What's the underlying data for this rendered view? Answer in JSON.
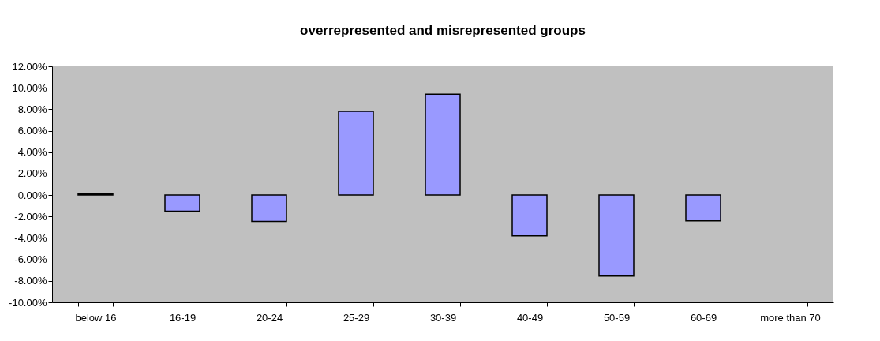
{
  "chart_data": {
    "type": "bar",
    "title": "overrepresented and misrepresented groups",
    "categories": [
      "below  16",
      "16-19",
      "20-24",
      "25-29",
      "30-39",
      "40-49",
      "50-59",
      "60-69",
      "more than 70"
    ],
    "values": [
      0.1,
      -1.5,
      -2.45,
      7.8,
      9.4,
      -3.8,
      -7.55,
      -2.4,
      null
    ],
    "color": "#9999ff",
    "ylim": [
      -10,
      12
    ],
    "yticks": [
      {
        "value": -10,
        "label": "-10.00%"
      },
      {
        "value": -8,
        "label": "-8.00%"
      },
      {
        "value": -6,
        "label": "-6.00%"
      },
      {
        "value": -4,
        "label": "-4.00%"
      },
      {
        "value": -2,
        "label": "-2.00%"
      },
      {
        "value": 0,
        "label": "0.00%"
      },
      {
        "value": 2,
        "label": "2.00%"
      },
      {
        "value": 4,
        "label": "4.00%"
      },
      {
        "value": 6,
        "label": "6.00%"
      },
      {
        "value": 8,
        "label": "8.00%"
      },
      {
        "value": 10,
        "label": "10.00%"
      },
      {
        "value": 12,
        "label": "12.00%"
      }
    ],
    "grid": false
  }
}
